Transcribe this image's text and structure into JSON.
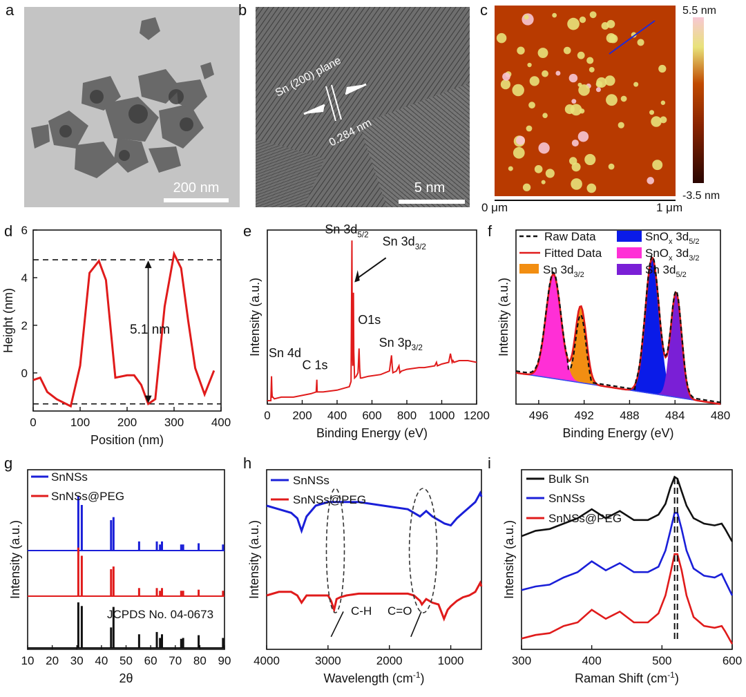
{
  "panels": {
    "a": {
      "letter": "a",
      "scale": "200 nm"
    },
    "b": {
      "letter": "b",
      "scale": "5 nm",
      "plane": "Sn (200) plane",
      "spacing": "0.284 nm"
    },
    "c": {
      "letter": "c",
      "cb_max": "5.5 nm",
      "cb_min": "-3.5 nm",
      "x0": "0 μm",
      "x1": "1 μm",
      "colors": {
        "low": "#2a0500",
        "mid": "#b83a00",
        "high": "#f2f18c",
        "top": "#f7c7d4",
        "line": "#1f2ad8"
      }
    },
    "d": {
      "letter": "d",
      "annot": "5.1 nm"
    },
    "e": {
      "letter": "e"
    },
    "f": {
      "letter": "f"
    },
    "g": {
      "letter": "g",
      "ref": "JCPDS No. 04-0673"
    },
    "h": {
      "letter": "h",
      "ch": "C-H",
      "co": "C=O"
    },
    "i": {
      "letter": "i"
    }
  },
  "chart_data": [
    {
      "panel": "d",
      "type": "line",
      "xlabel": "Position (nm)",
      "ylabel": "Height (nm)",
      "xlim": [
        0,
        400
      ],
      "ylim": [
        -1.6,
        6
      ],
      "xticks": [
        0,
        100,
        200,
        300,
        400
      ],
      "yticks": [
        0,
        2,
        4,
        6
      ],
      "series": [
        {
          "color": "#e01b1b",
          "x": [
            0,
            15,
            30,
            50,
            80,
            100,
            120,
            140,
            155,
            175,
            200,
            215,
            230,
            245,
            260,
            280,
            300,
            315,
            330,
            345,
            365,
            385
          ],
          "y": [
            -0.3,
            -0.2,
            -0.8,
            -1.1,
            -1.4,
            0.3,
            4.2,
            4.7,
            3.9,
            -0.2,
            -0.1,
            -0.1,
            -0.5,
            -1.3,
            -1.1,
            2.8,
            5.0,
            4.4,
            2.2,
            0.2,
            -0.9,
            0.1
          ]
        }
      ],
      "hlines": [
        4.75,
        -1.3
      ]
    },
    {
      "panel": "e",
      "type": "line",
      "xlabel": "Binding Energy (eV)",
      "ylabel": "Intensity (a.u.)",
      "xlim": [
        0,
        1200
      ],
      "ylim": [
        0,
        1
      ],
      "xticks": [
        0,
        200,
        400,
        600,
        800,
        1000,
        1200
      ],
      "series": [
        {
          "color": "#e01b1b",
          "x": [
            0,
            20,
            24,
            26,
            28,
            32,
            40,
            80,
            150,
            200,
            250,
            280,
            284,
            286,
            290,
            320,
            400,
            470,
            480,
            484,
            485,
            486,
            488,
            490,
            493,
            494,
            496,
            500,
            510,
            520,
            526,
            530,
            534,
            540,
            580,
            650,
            700,
            712,
            716,
            720,
            740,
            755,
            760,
            770,
            800,
            870,
            900,
            960,
            970,
            975,
            1000,
            1040,
            1050,
            1060,
            1065,
            1070,
            1100,
            1150,
            1200
          ],
          "y": [
            0.02,
            0.02,
            0.16,
            0.08,
            0.04,
            0.04,
            0.03,
            0.04,
            0.04,
            0.05,
            0.06,
            0.07,
            0.14,
            0.07,
            0.07,
            0.07,
            0.08,
            0.1,
            0.13,
            0.75,
            0.94,
            0.7,
            0.28,
            0.22,
            0.35,
            0.64,
            0.3,
            0.15,
            0.16,
            0.18,
            0.32,
            0.2,
            0.15,
            0.15,
            0.16,
            0.17,
            0.19,
            0.28,
            0.22,
            0.18,
            0.19,
            0.22,
            0.18,
            0.19,
            0.2,
            0.21,
            0.21,
            0.22,
            0.24,
            0.22,
            0.23,
            0.24,
            0.29,
            0.24,
            0.25,
            0.24,
            0.25,
            0.25,
            0.24
          ]
        }
      ],
      "annotations": [
        {
          "text": "Sn 4d",
          "x": 25,
          "y": 0.2
        },
        {
          "text": "C 1s",
          "x": 284,
          "y": 0.18
        },
        {
          "text": "Sn 3d",
          "sub": "5/2",
          "x": 485,
          "y": 0.98
        },
        {
          "text": "Sn 3d",
          "sub": "3/2",
          "x": 494,
          "y": 0.7
        },
        {
          "text": "O1s",
          "x": 531,
          "y": 0.36
        },
        {
          "text": "Sn 3p",
          "sub": "3/2",
          "x": 714,
          "y": 0.32
        }
      ]
    },
    {
      "panel": "f",
      "type": "line",
      "xlabel": "Binding Energy (eV)",
      "ylabel": "Intensity (a.u.)",
      "xlim": [
        498,
        480
      ],
      "reversed_x": true,
      "xticks": [
        496,
        492,
        488,
        484,
        480
      ],
      "baseline": {
        "x0": 498,
        "y0": 0.18,
        "x1": 480,
        "y1": 0.0
      },
      "peaks": [
        {
          "name": "Sn 3d",
          "sub": "3/2",
          "center": 492.3,
          "height": 0.44,
          "width": 0.55,
          "color": "#f28e12"
        },
        {
          "name": "SnO",
          "sub": "x",
          "tail": " 3d",
          "sub2": "3/2",
          "center": 494.7,
          "height": 0.6,
          "width": 0.75,
          "color": "#ff2fd6"
        },
        {
          "name": "SnO",
          "sub": "x",
          "tail": " 3d",
          "sub2": "5/2",
          "center": 486.0,
          "height": 0.78,
          "width": 0.7,
          "color": "#0a1be8"
        },
        {
          "name": "Sn 3d",
          "sub": "5/2",
          "center": 483.9,
          "height": 0.6,
          "width": 0.55,
          "color": "#7a1fd6"
        }
      ],
      "raw": {
        "name": "Raw Data",
        "color": "#111111"
      },
      "fit": {
        "name": "Fitted Data",
        "color": "#e01b1b"
      }
    },
    {
      "panel": "g",
      "type": "bar",
      "xlabel": "2θ",
      "ylabel": "Intensity (a.u.)",
      "xlim": [
        10,
        90
      ],
      "xticks": [
        10,
        20,
        30,
        40,
        50,
        60,
        70,
        80,
        90
      ],
      "series": [
        {
          "name": "SnNSs",
          "color": "#1a1fd8",
          "x": [
            30.6,
            32.0,
            43.9,
            44.9,
            55.3,
            62.5,
            63.8,
            64.6,
            72.4,
            73.2,
            79.5,
            89.4
          ],
          "y": [
            0.9,
            0.75,
            0.5,
            0.55,
            0.15,
            0.15,
            0.1,
            0.15,
            0.1,
            0.1,
            0.12,
            0.1
          ]
        },
        {
          "name": "SnNSs@PEG",
          "color": "#e01b1b",
          "x": [
            30.6,
            32.0,
            43.9,
            44.9,
            55.3,
            62.5,
            63.8,
            64.6,
            72.4,
            73.2,
            79.5,
            89.4
          ],
          "y": [
            0.9,
            0.75,
            0.5,
            0.55,
            0.15,
            0.15,
            0.1,
            0.15,
            0.1,
            0.1,
            0.12,
            0.1
          ]
        },
        {
          "name": "ref",
          "color": "#111111",
          "x": [
            30.6,
            32.0,
            43.9,
            44.9,
            55.3,
            62.5,
            63.8,
            64.6,
            72.4,
            73.2,
            79.5,
            89.4
          ],
          "y": [
            1.0,
            0.92,
            0.45,
            0.9,
            0.3,
            0.35,
            0.22,
            0.3,
            0.2,
            0.22,
            0.28,
            0.22
          ]
        }
      ]
    },
    {
      "panel": "h",
      "type": "line",
      "xlabel": "Wavelength (cm",
      "xlabel_sup": "-1",
      "ylabel": "Intensity (a.u.)",
      "xlim": [
        4000,
        500
      ],
      "reversed_x": true,
      "xticks": [
        4000,
        3000,
        2000,
        1000
      ],
      "series": [
        {
          "name": "SnNSs",
          "color": "#1a1fd8",
          "x": [
            4000,
            3800,
            3600,
            3500,
            3430,
            3350,
            3200,
            3000,
            2900,
            2700,
            2500,
            2300,
            2100,
            1900,
            1700,
            1600,
            1500,
            1400,
            1300,
            1200,
            1100,
            1000,
            900,
            800,
            700,
            600,
            520,
            500
          ],
          "y": [
            0.8,
            0.78,
            0.76,
            0.73,
            0.66,
            0.74,
            0.8,
            0.82,
            0.82,
            0.82,
            0.82,
            0.81,
            0.8,
            0.79,
            0.78,
            0.76,
            0.74,
            0.77,
            0.74,
            0.72,
            0.7,
            0.69,
            0.73,
            0.76,
            0.79,
            0.82,
            0.87,
            0.85
          ]
        },
        {
          "name": "SnNSs@PEG",
          "color": "#e01b1b",
          "x": [
            4000,
            3800,
            3600,
            3500,
            3430,
            3350,
            3200,
            3000,
            2950,
            2900,
            2860,
            2800,
            2700,
            2500,
            2300,
            2100,
            1900,
            1700,
            1600,
            1500,
            1470,
            1400,
            1300,
            1200,
            1110,
            1050,
            1000,
            900,
            800,
            700,
            600,
            520,
            500
          ],
          "y": [
            0.3,
            0.32,
            0.32,
            0.3,
            0.26,
            0.3,
            0.3,
            0.3,
            0.27,
            0.22,
            0.28,
            0.29,
            0.3,
            0.31,
            0.31,
            0.31,
            0.31,
            0.31,
            0.3,
            0.27,
            0.25,
            0.28,
            0.26,
            0.25,
            0.17,
            0.22,
            0.24,
            0.27,
            0.29,
            0.3,
            0.32,
            0.37,
            0.35
          ]
        }
      ]
    },
    {
      "panel": "i",
      "type": "line",
      "xlabel": "Raman Shift (cm",
      "xlabel_sup": "-1",
      "ylabel": "Intensity (a.u.)",
      "xlim": [
        300,
        600
      ],
      "xticks": [
        300,
        400,
        500,
        600
      ],
      "series": [
        {
          "name": "Bulk Sn",
          "color": "#111111",
          "x": [
            300,
            320,
            340,
            360,
            380,
            400,
            420,
            440,
            460,
            480,
            495,
            505,
            512,
            518,
            522,
            528,
            535,
            545,
            560,
            575,
            585,
            590,
            600
          ],
          "y": [
            0.63,
            0.66,
            0.67,
            0.7,
            0.73,
            0.78,
            0.73,
            0.77,
            0.72,
            0.72,
            0.75,
            0.81,
            0.9,
            0.96,
            0.95,
            0.88,
            0.8,
            0.73,
            0.7,
            0.69,
            0.7,
            0.67,
            0.6
          ]
        },
        {
          "name": "SnNSs",
          "color": "#1a1fd8",
          "x": [
            300,
            320,
            340,
            360,
            380,
            400,
            420,
            440,
            460,
            480,
            495,
            505,
            512,
            518,
            522,
            528,
            535,
            545,
            560,
            575,
            585,
            590,
            600
          ],
          "y": [
            0.33,
            0.35,
            0.36,
            0.4,
            0.43,
            0.49,
            0.44,
            0.48,
            0.43,
            0.43,
            0.46,
            0.55,
            0.66,
            0.76,
            0.76,
            0.67,
            0.55,
            0.45,
            0.41,
            0.4,
            0.42,
            0.38,
            0.3
          ]
        },
        {
          "name": "SnNSs@PEG",
          "color": "#e01b1b",
          "x": [
            300,
            320,
            340,
            360,
            380,
            400,
            420,
            440,
            460,
            480,
            495,
            505,
            512,
            518,
            522,
            528,
            535,
            545,
            560,
            575,
            585,
            590,
            600
          ],
          "y": [
            0.06,
            0.08,
            0.09,
            0.13,
            0.15,
            0.22,
            0.17,
            0.21,
            0.15,
            0.15,
            0.2,
            0.3,
            0.42,
            0.53,
            0.53,
            0.44,
            0.3,
            0.18,
            0.13,
            0.12,
            0.13,
            0.1,
            0.03
          ]
        }
      ],
      "vlines": [
        518,
        522
      ]
    }
  ]
}
